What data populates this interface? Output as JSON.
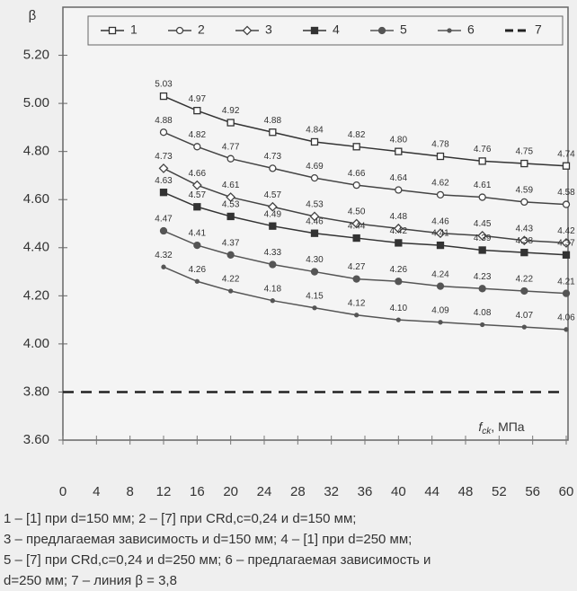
{
  "chart_data": {
    "type": "line",
    "y_axis_label": "β",
    "x_axis_label": {
      "symbol": "f",
      "subscript": "ck",
      "unit": ", МПа"
    },
    "xlim": [
      0,
      60
    ],
    "ylim": [
      3.6,
      5.4
    ],
    "xticks": [
      0,
      4,
      8,
      12,
      16,
      20,
      24,
      28,
      32,
      36,
      40,
      44,
      48,
      52,
      56,
      60
    ],
    "yticks": [
      {
        "value": 3.6,
        "label": "3.60"
      },
      {
        "value": 3.8,
        "label": "3.80"
      },
      {
        "value": 4.0,
        "label": "4.00"
      },
      {
        "value": 4.2,
        "label": "4.20"
      },
      {
        "value": 4.4,
        "label": "4.40"
      },
      {
        "value": 4.6,
        "label": "4.60"
      },
      {
        "value": 4.8,
        "label": "4.80"
      },
      {
        "value": 5.0,
        "label": "5.00"
      },
      {
        "value": 5.2,
        "label": "5.20"
      }
    ],
    "grid": false,
    "x": [
      12,
      16,
      20,
      25,
      30,
      35,
      40,
      45,
      50,
      55,
      60
    ],
    "series": [
      {
        "name": "1",
        "color": "#333333",
        "marker": "open-square",
        "values": [
          5.03,
          4.97,
          4.92,
          4.88,
          4.84,
          4.82,
          4.8,
          4.78,
          4.76,
          4.75,
          4.74
        ],
        "value_labels": [
          "5.03",
          "4.97",
          "4.92",
          "4.88",
          "4.84",
          "4.82",
          "4.80",
          "4.78",
          "4.76",
          "4.75",
          "4.74"
        ]
      },
      {
        "name": "2",
        "color": "#444444",
        "marker": "open-circle",
        "values": [
          4.88,
          4.82,
          4.77,
          4.73,
          4.69,
          4.66,
          4.64,
          4.62,
          4.61,
          4.59,
          4.58
        ],
        "value_labels": [
          "4.88",
          "4.82",
          "4.77",
          "4.73",
          "4.69",
          "4.66",
          "4.64",
          "4.62",
          "4.61",
          "4.59",
          "4.58"
        ]
      },
      {
        "name": "3",
        "color": "#444444",
        "marker": "open-diamond",
        "values": [
          4.73,
          4.66,
          4.61,
          4.57,
          4.53,
          4.5,
          4.48,
          4.46,
          4.45,
          4.43,
          4.42
        ],
        "value_labels": [
          "4.73",
          "4.66",
          "4.61",
          "4.57",
          "4.53",
          "4.50",
          "4.48",
          "4.46",
          "4.45",
          "4.43",
          "4.42"
        ]
      },
      {
        "name": "4",
        "color": "#333333",
        "marker": "filled-square",
        "values": [
          4.63,
          4.57,
          4.53,
          4.49,
          4.46,
          4.44,
          4.42,
          4.41,
          4.39,
          4.38,
          4.37
        ],
        "value_labels": [
          "4.63",
          "4.57",
          "4.53",
          "4.49",
          "4.46",
          "4.44",
          "4.42",
          "4.41",
          "4.39",
          "4.38",
          "4.37"
        ]
      },
      {
        "name": "5",
        "color": "#555555",
        "marker": "filled-circle",
        "values": [
          4.47,
          4.41,
          4.37,
          4.33,
          4.3,
          4.27,
          4.26,
          4.24,
          4.23,
          4.22,
          4.21
        ],
        "value_labels": [
          "4.47",
          "4.41",
          "4.37",
          "4.33",
          "4.30",
          "4.27",
          "4.26",
          "4.24",
          "4.23",
          "4.22",
          "4.21"
        ]
      },
      {
        "name": "6",
        "color": "#555555",
        "marker": "dot",
        "values": [
          4.32,
          4.26,
          4.22,
          4.18,
          4.15,
          4.12,
          4.1,
          4.09,
          4.08,
          4.07,
          4.06
        ],
        "value_labels": [
          "4.32",
          "4.26",
          "4.22",
          "4.18",
          "4.15",
          "4.12",
          "4.10",
          "4.09",
          "4.08",
          "4.07",
          "4.06"
        ]
      },
      {
        "name": "7",
        "color": "#222222",
        "marker": "dashed",
        "x": [
          0,
          60
        ],
        "values": [
          3.8,
          3.8
        ]
      }
    ],
    "caption": [
      "1 – [1] при d=150 мм; 2 – [7] при CRd,c=0,24 и d=150 мм;",
      "3 – предлагаемая зависимость и d=150 мм; 4 – [1] при d=250 мм;",
      "5 – [7] при CRd,c=0,24 и d=250 мм; 6 – предлагаемая зависимость и",
      "d=250 мм; 7 – линия β = 3,8"
    ]
  }
}
